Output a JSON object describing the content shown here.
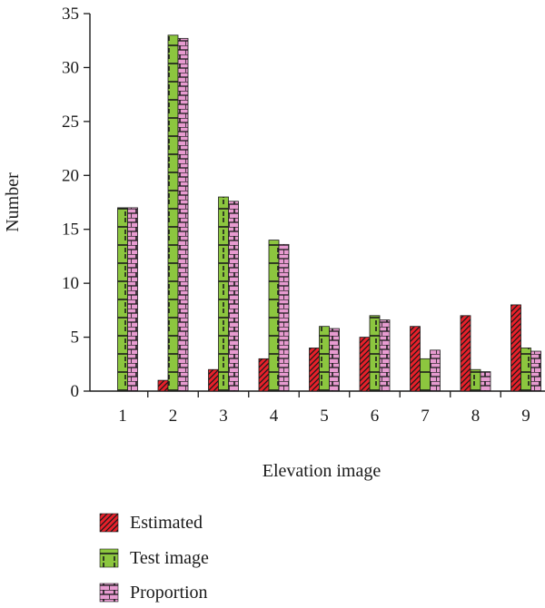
{
  "chart_data": {
    "type": "bar",
    "xlabel": "Elevation image",
    "ylabel": "Number",
    "ylim": [
      0,
      35
    ],
    "yticks": [
      0,
      5,
      10,
      15,
      20,
      25,
      30,
      35
    ],
    "categories": [
      "1",
      "2",
      "3",
      "4",
      "5",
      "6",
      "7",
      "8",
      "9"
    ],
    "series": [
      {
        "name": "Estimated",
        "color": "#e8202a",
        "pattern": "diagonal-hatch",
        "values": [
          0,
          1,
          2,
          3,
          4,
          5,
          6,
          7,
          8
        ]
      },
      {
        "name": "Test image",
        "color": "#8cc63f",
        "pattern": "dashed-grid",
        "values": [
          17,
          33,
          18,
          14,
          6,
          7,
          3,
          2,
          4
        ]
      },
      {
        "name": "Proportion",
        "color": "#e79bd0",
        "pattern": "brick",
        "values": [
          17,
          32.7,
          17.6,
          13.6,
          5.8,
          6.6,
          3.8,
          1.8,
          3.7
        ]
      }
    ],
    "legend": "bottom-left",
    "grid": false
  }
}
